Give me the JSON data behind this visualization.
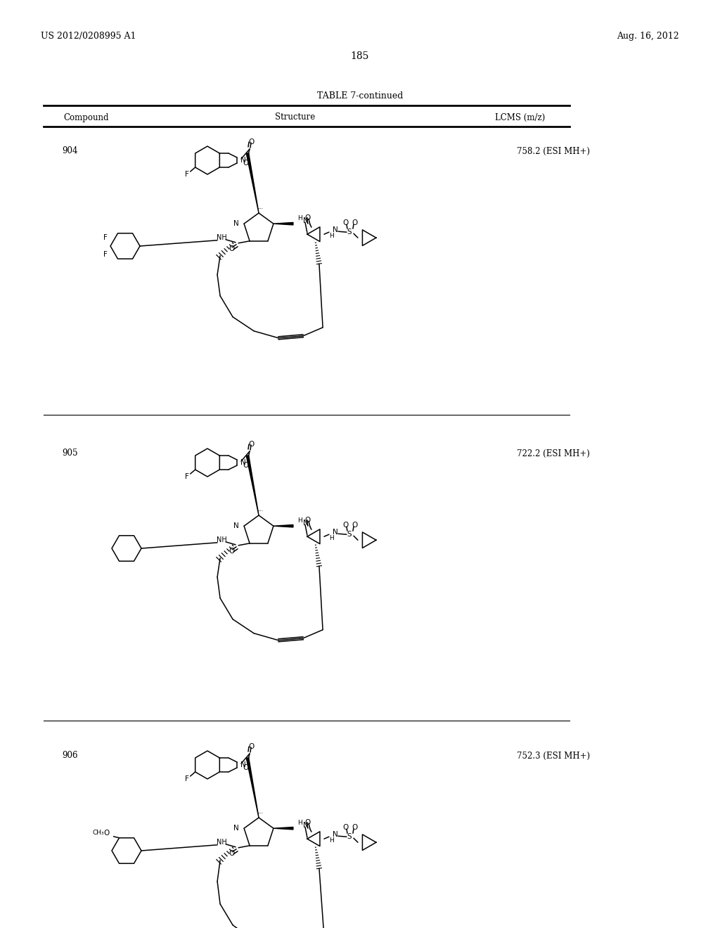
{
  "page_header_left": "US 2012/0208995 A1",
  "page_header_right": "Aug. 16, 2012",
  "page_number": "185",
  "table_title": "TABLE 7-continued",
  "col_headers": [
    "Compound",
    "Structure",
    "LCMS (m/z)"
  ],
  "compounds": [
    {
      "id": "904",
      "lcms": "758.2 (ESI MH+)"
    },
    {
      "id": "905",
      "lcms": "722.2 (ESI MH+)"
    },
    {
      "id": "906",
      "lcms": "752.3 (ESI MH+)"
    }
  ],
  "bg_color": "#ffffff",
  "text_color": "#000000",
  "lw": 1.1
}
